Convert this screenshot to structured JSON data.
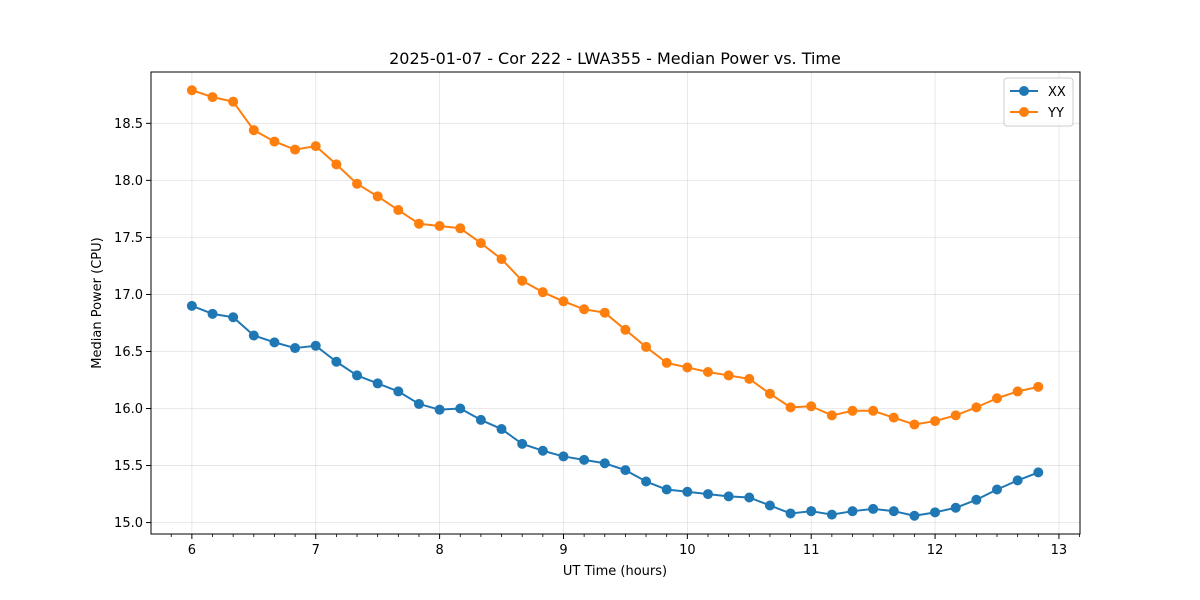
{
  "chart_data": {
    "type": "line",
    "title": "2025-01-07 - Cor 222 - LWA355 - Median Power vs. Time",
    "xlabel": "UT Time (hours)",
    "ylabel": "Median Power (CPU)",
    "xlim": [
      5.67,
      13.17
    ],
    "ylim": [
      14.9,
      18.95
    ],
    "xticks": [
      6,
      7,
      8,
      9,
      10,
      11,
      12,
      13
    ],
    "yticks": [
      15.0,
      15.5,
      16.0,
      16.5,
      17.0,
      17.5,
      18.0,
      18.5
    ],
    "xtick_labels": [
      "6",
      "7",
      "8",
      "9",
      "10",
      "11",
      "12",
      "13"
    ],
    "ytick_labels": [
      "15.0",
      "15.5",
      "16.0",
      "16.5",
      "17.0",
      "17.5",
      "18.0",
      "18.5"
    ],
    "grid": true,
    "legend": "top-right",
    "x": [
      6.0,
      6.1667,
      6.3333,
      6.5,
      6.6667,
      6.8333,
      7.0,
      7.1667,
      7.3333,
      7.5,
      7.6667,
      7.8333,
      8.0,
      8.1667,
      8.3333,
      8.5,
      8.6667,
      8.8333,
      9.0,
      9.1667,
      9.3333,
      9.5,
      9.6667,
      9.8333,
      10.0,
      10.1667,
      10.3333,
      10.5,
      10.6667,
      10.8333,
      11.0,
      11.1667,
      11.3333,
      11.5,
      11.6667,
      11.8333,
      12.0,
      12.1667,
      12.3333,
      12.5,
      12.6667,
      12.8333
    ],
    "series": [
      {
        "name": "XX",
        "color": "#1f77b4",
        "values": [
          16.9,
          16.83,
          16.8,
          16.64,
          16.58,
          16.53,
          16.55,
          16.41,
          16.29,
          16.22,
          16.15,
          16.04,
          15.99,
          16.0,
          15.9,
          15.82,
          15.69,
          15.63,
          15.58,
          15.55,
          15.52,
          15.46,
          15.36,
          15.29,
          15.27,
          15.25,
          15.23,
          15.22,
          15.15,
          15.08,
          15.1,
          15.07,
          15.1,
          15.12,
          15.1,
          15.06,
          15.09,
          15.13,
          15.2,
          15.29,
          15.37,
          15.44
        ]
      },
      {
        "name": "YY",
        "color": "#ff7f0e",
        "values": [
          18.79,
          18.73,
          18.69,
          18.44,
          18.34,
          18.27,
          18.3,
          18.14,
          17.97,
          17.86,
          17.74,
          17.62,
          17.6,
          17.58,
          17.45,
          17.31,
          17.12,
          17.02,
          16.94,
          16.87,
          16.84,
          16.69,
          16.54,
          16.4,
          16.36,
          16.32,
          16.29,
          16.26,
          16.13,
          16.01,
          16.02,
          15.94,
          15.98,
          15.98,
          15.92,
          15.86,
          15.89,
          15.94,
          16.01,
          16.09,
          16.15,
          16.19
        ]
      }
    ]
  }
}
